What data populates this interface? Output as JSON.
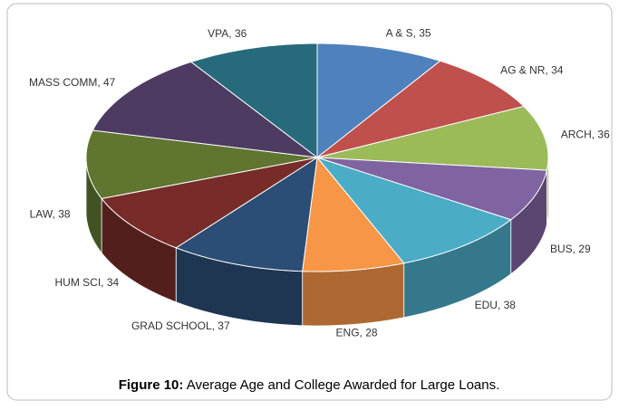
{
  "chart_data": {
    "type": "pie3d",
    "values": [
      35,
      34,
      36,
      29,
      38,
      28,
      37,
      34,
      38,
      47,
      36
    ],
    "value_labels": [
      "A & S, 35",
      "AG & NR, 34",
      "ARCH, 36",
      "BUS, 29",
      "EDU, 38",
      "ENG, 28",
      "GRAD SCHOOL, 37",
      "HUM SCI, 34",
      "LAW, 38",
      "MASS COMM, 47",
      "VPA, 36"
    ],
    "colors": [
      "#4f81bd",
      "#c0504d",
      "#9bbb59",
      "#8064a2",
      "#4bacc6",
      "#f79646",
      "#2c4d75",
      "#772c2a",
      "#5f7530",
      "#4d3b62",
      "#276a7c"
    ]
  },
  "caption": {
    "label": "Figure 10:",
    "text": "Average Age and College Awarded for Large Loans."
  }
}
